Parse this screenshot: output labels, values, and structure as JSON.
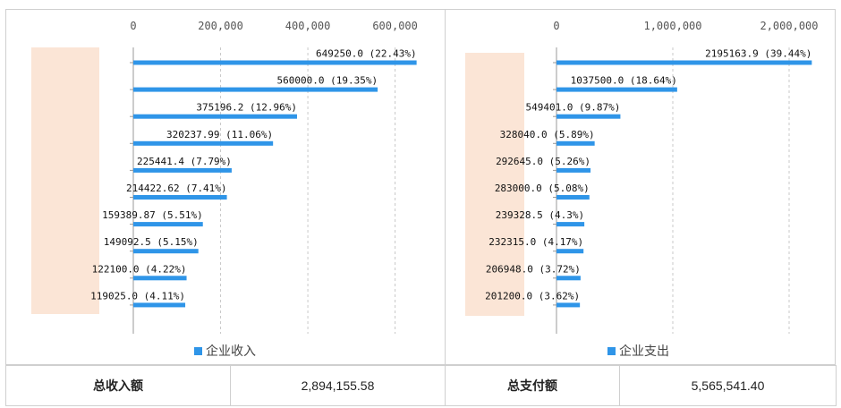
{
  "chart_data": [
    {
      "type": "bar",
      "orientation": "horizontal",
      "legend": "企业收入",
      "legend_color": "#2f95e8",
      "bar_color": "#2f95e8",
      "xlim": [
        0,
        650000
      ],
      "ticks": [
        0,
        200000,
        400000,
        600000
      ],
      "tick_labels": [
        "0",
        "200,000",
        "400,000",
        "600,000"
      ],
      "grid": "vertical dashed",
      "values": [
        649250.0,
        560000.0,
        375196.2,
        320237.99,
        225441.4,
        214422.62,
        159389.87,
        149092.5,
        122100.0,
        119025.0
      ],
      "data_labels": [
        "649250.0 (22.43%)",
        "560000.0 (19.35%)",
        "375196.2 (12.96%)",
        "320237.99 (11.06%)",
        "225441.4 (7.79%)",
        "214422.62 (7.41%)",
        "159389.87 (5.51%)",
        "149092.5 (5.15%)",
        "122100.0 (4.22%)",
        "119025.0 (4.11%)"
      ]
    },
    {
      "type": "bar",
      "orientation": "horizontal",
      "legend": "企业支出",
      "legend_color": "#2f95e8",
      "bar_color": "#2f95e8",
      "xlim": [
        0,
        2200000
      ],
      "ticks": [
        0,
        1000000,
        2000000
      ],
      "tick_labels": [
        "0",
        "1,000,000",
        "2,000,000"
      ],
      "grid": "vertical dashed",
      "values": [
        2195163.9,
        1037500.0,
        549401.0,
        328040.0,
        292645.0,
        283000.0,
        239328.5,
        232315.0,
        206948.0,
        201200.0
      ],
      "data_labels": [
        "2195163.9 (39.44%)",
        "1037500.0 (18.64%)",
        "549401.0 (9.87%)",
        "328040.0 (5.89%)",
        "292645.0 (5.26%)",
        "283000.0 (5.08%)",
        "239328.5 (4.3%)",
        "232315.0 (4.17%)",
        "206948.0 (3.72%)",
        "201200.0 (3.62%)"
      ]
    }
  ],
  "summary": {
    "income_label": "总收入额",
    "income_value": "2,894,155.58",
    "expense_label": "总支付额",
    "expense_value": "5,565,541.40"
  },
  "mask_color": "#fbe5d6"
}
